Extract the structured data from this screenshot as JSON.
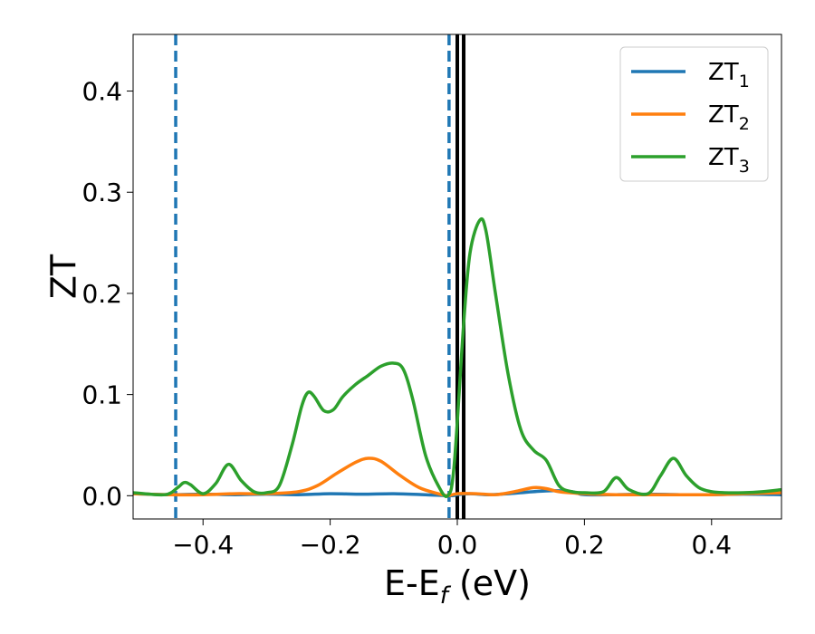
{
  "chart_data": {
    "type": "line",
    "xlabel": "E-E_f (eV)",
    "ylabel": "ZT",
    "xlim": [
      -0.51,
      0.51
    ],
    "ylim": [
      -0.023,
      0.456
    ],
    "x_ticks": [
      -0.4,
      -0.2,
      0.0,
      0.2,
      0.4
    ],
    "x_tick_labels": [
      "−0.4",
      "−0.2",
      "0.0",
      "0.2",
      "0.4"
    ],
    "y_ticks": [
      0.0,
      0.1,
      0.2,
      0.3,
      0.4
    ],
    "y_tick_labels": [
      "0.0",
      "0.1",
      "0.2",
      "0.3",
      "0.4"
    ],
    "grid": false,
    "legend_position": "top-right",
    "series": [
      {
        "name": "ZT_1",
        "color": "#1f77b4",
        "x": [
          -0.51,
          -0.45,
          -0.4,
          -0.35,
          -0.3,
          -0.25,
          -0.2,
          -0.15,
          -0.1,
          -0.05,
          -0.01,
          0.0,
          0.02,
          0.05,
          0.08,
          0.1,
          0.12,
          0.15,
          0.18,
          0.2,
          0.25,
          0.3,
          0.35,
          0.4,
          0.45,
          0.51
        ],
        "y": [
          0.002,
          0.001,
          0.0015,
          0.001,
          0.0015,
          0.001,
          0.002,
          0.0015,
          0.002,
          0.001,
          0.0,
          0.001,
          0.002,
          0.001,
          0.002,
          0.003,
          0.004,
          0.005,
          0.004,
          0.001,
          0.001,
          0.0015,
          0.001,
          0.001,
          0.0015,
          0.001
        ]
      },
      {
        "name": "ZT_2",
        "color": "#ff7f0e",
        "x": [
          -0.51,
          -0.45,
          -0.4,
          -0.35,
          -0.3,
          -0.25,
          -0.22,
          -0.19,
          -0.16,
          -0.14,
          -0.12,
          -0.09,
          -0.06,
          -0.03,
          -0.015,
          0.0,
          0.03,
          0.06,
          0.09,
          0.12,
          0.14,
          0.16,
          0.2,
          0.25,
          0.3,
          0.35,
          0.4,
          0.45,
          0.51
        ],
        "y": [
          0.002,
          0.001,
          0.001,
          0.002,
          0.002,
          0.004,
          0.01,
          0.022,
          0.033,
          0.037,
          0.034,
          0.02,
          0.008,
          0.002,
          0.0,
          0.002,
          0.002,
          0.001,
          0.004,
          0.008,
          0.007,
          0.004,
          0.002,
          0.001,
          0.001,
          0.001,
          0.001,
          0.002,
          0.003
        ]
      },
      {
        "name": "ZT_3",
        "color": "#2ca02c",
        "x": [
          -0.51,
          -0.46,
          -0.44,
          -0.43,
          -0.42,
          -0.4,
          -0.38,
          -0.36,
          -0.34,
          -0.32,
          -0.3,
          -0.28,
          -0.26,
          -0.245,
          -0.235,
          -0.225,
          -0.21,
          -0.195,
          -0.18,
          -0.16,
          -0.14,
          -0.12,
          -0.1,
          -0.085,
          -0.07,
          -0.05,
          -0.03,
          -0.015,
          -0.005,
          0.01,
          0.02,
          0.035,
          0.045,
          0.06,
          0.08,
          0.1,
          0.12,
          0.14,
          0.16,
          0.18,
          0.2,
          0.23,
          0.25,
          0.27,
          0.3,
          0.32,
          0.34,
          0.36,
          0.38,
          0.4,
          0.42,
          0.45,
          0.48,
          0.51
        ],
        "y": [
          0.003,
          0.001,
          0.008,
          0.013,
          0.011,
          0.002,
          0.012,
          0.031,
          0.015,
          0.004,
          0.003,
          0.01,
          0.05,
          0.088,
          0.102,
          0.098,
          0.084,
          0.085,
          0.098,
          0.11,
          0.119,
          0.128,
          0.131,
          0.125,
          0.095,
          0.04,
          0.01,
          0.0,
          0.03,
          0.17,
          0.24,
          0.272,
          0.262,
          0.2,
          0.12,
          0.065,
          0.045,
          0.035,
          0.01,
          0.004,
          0.003,
          0.004,
          0.018,
          0.006,
          0.002,
          0.02,
          0.037,
          0.02,
          0.008,
          0.004,
          0.003,
          0.003,
          0.004,
          0.006
        ]
      }
    ],
    "vlines": [
      {
        "x": -0.443,
        "color": "#1f77b4",
        "style": "dashed"
      },
      {
        "x": -0.013,
        "color": "#1f77b4",
        "style": "dashed"
      },
      {
        "x": 0.0,
        "color": "#000000",
        "style": "solid"
      },
      {
        "x": 0.01,
        "color": "#000000",
        "style": "solid"
      }
    ]
  },
  "legend": {
    "items": [
      {
        "base": "ZT",
        "sub": "1",
        "color": "#1f77b4"
      },
      {
        "base": "ZT",
        "sub": "2",
        "color": "#ff7f0e"
      },
      {
        "base": "ZT",
        "sub": "3",
        "color": "#2ca02c"
      }
    ]
  }
}
